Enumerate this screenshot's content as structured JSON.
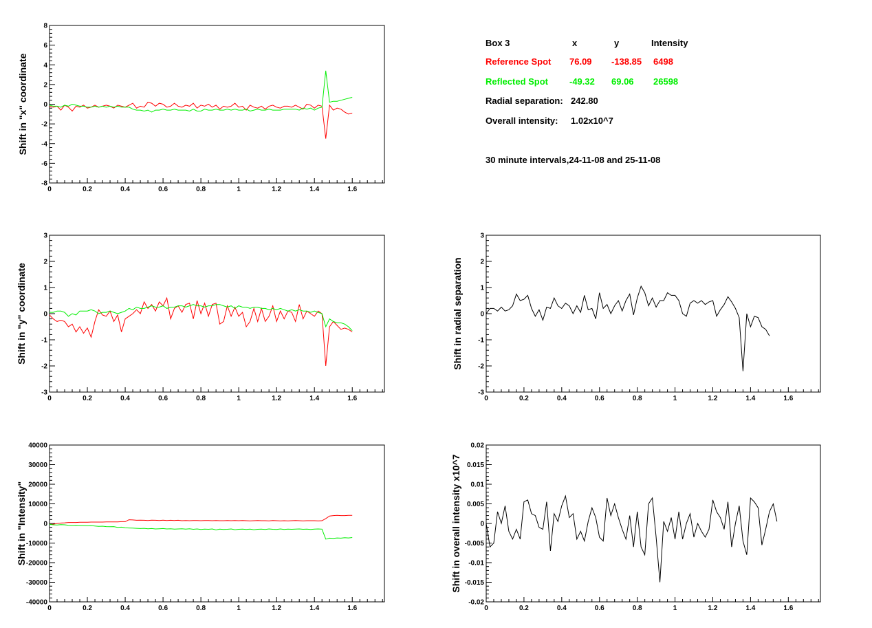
{
  "info": {
    "box_label": "Box 3",
    "col_x": "x",
    "col_y": "y",
    "col_intensity": "Intensity",
    "reference": {
      "label": "Reference Spot",
      "x": "76.09",
      "y": "-138.85",
      "intensity": "6498"
    },
    "reflected": {
      "label": "Reflected Spot",
      "x": "-49.32",
      "y": "69.06",
      "intensity": "26598"
    },
    "radial_label": "Radial separation:",
    "radial_value": "242.80",
    "overall_label": "Overall intensity:",
    "overall_value": "1.02x10^7",
    "note": "30 minute intervals,24-11-08 and 25-11-08"
  },
  "colors": {
    "reference": "#ff0000",
    "reflected": "#00ee00",
    "single": "#000000",
    "axis": "#000000"
  },
  "chart_data": [
    {
      "id": "x-shift",
      "type": "line",
      "ylabel": "Shift in \"x\" coordinate",
      "xlabel": "",
      "xlim": [
        0,
        1.77
      ],
      "ylim": [
        -8,
        8
      ],
      "xticks": [
        0,
        0.2,
        0.4,
        0.6,
        0.8,
        1,
        1.2,
        1.4,
        1.6
      ],
      "yticks": [
        -8,
        -6,
        -4,
        -2,
        0,
        2,
        4,
        6,
        8
      ],
      "grid": false,
      "series": [
        {
          "color": "reference",
          "x0": 0,
          "dx": 0.02,
          "values": [
            -0.2,
            -0.3,
            -0.2,
            -0.6,
            -0.1,
            -0.3,
            -0.7,
            -0.2,
            -0.3,
            -0.1,
            -0.4,
            -0.3,
            -0.1,
            -0.3,
            -0.2,
            -0.1,
            -0.2,
            -0.4,
            -0.1,
            -0.2,
            -0.3,
            -0.1,
            0.1,
            -0.4,
            -0.2,
            -0.3,
            0.2,
            0.1,
            -0.2,
            0.1,
            0.0,
            -0.3,
            -0.2,
            0.1,
            -0.2,
            -0.3,
            -0.1,
            -0.2,
            0.1,
            -0.4,
            -0.1,
            -0.2,
            0.0,
            -0.3,
            -0.1,
            -0.5,
            -0.2,
            -0.3,
            -0.2,
            0.1,
            -0.3,
            -0.2,
            -0.6,
            -0.1,
            -0.3,
            -0.4,
            -0.2,
            -0.5,
            -0.2,
            -0.1,
            -0.3,
            -0.4,
            -0.2,
            -0.2,
            -0.3,
            -0.1,
            -0.3,
            -0.5,
            0.0,
            -0.1,
            -0.4,
            -0.1,
            -0.2,
            -3.5,
            -0.1,
            -0.6,
            -0.4,
            -0.5,
            -0.8,
            -1.0,
            -0.9
          ]
        },
        {
          "color": "reflected",
          "x0": 0,
          "dx": 0.02,
          "values": [
            -0.1,
            -0.2,
            -0.2,
            -0.3,
            -0.1,
            -0.2,
            0.0,
            -0.1,
            -0.2,
            -0.2,
            -0.3,
            -0.3,
            -0.2,
            -0.3,
            -0.2,
            -0.3,
            -0.2,
            -0.3,
            -0.2,
            -0.3,
            -0.3,
            -0.3,
            -0.5,
            -0.6,
            -0.6,
            -0.7,
            -0.6,
            -0.8,
            -0.6,
            -0.6,
            -0.5,
            -0.6,
            -0.6,
            -0.5,
            -0.6,
            -0.6,
            -0.6,
            -0.7,
            -0.5,
            -0.7,
            -0.7,
            -0.5,
            -0.6,
            -0.6,
            -0.5,
            -0.6,
            -0.6,
            -0.5,
            -0.6,
            -0.5,
            -0.6,
            -0.6,
            -0.5,
            -0.7,
            -0.6,
            -0.5,
            -0.6,
            -0.6,
            -0.5,
            -0.6,
            -0.6,
            -0.6,
            -0.5,
            -0.5,
            -0.5,
            -0.5,
            -0.6,
            -0.4,
            -0.5,
            -0.4,
            -0.6,
            -0.4,
            -0.3,
            3.4,
            0.2,
            0.3,
            0.3,
            0.4,
            0.5,
            0.6,
            0.7
          ]
        }
      ]
    },
    {
      "id": "y-shift",
      "type": "line",
      "ylabel": "Shift in \"y\" coordinate",
      "xlabel": "",
      "xlim": [
        0,
        1.77
      ],
      "ylim": [
        -3,
        3
      ],
      "xticks": [
        0,
        0.2,
        0.4,
        0.6,
        0.8,
        1,
        1.2,
        1.4,
        1.6
      ],
      "yticks": [
        -3,
        -2,
        -1,
        0,
        1,
        2,
        3
      ],
      "grid": false,
      "series": [
        {
          "color": "reference",
          "x0": 0,
          "dx": 0.02,
          "values": [
            -0.05,
            -0.2,
            -0.3,
            -0.25,
            -0.3,
            -0.5,
            -0.4,
            -0.7,
            -0.5,
            -0.75,
            -0.55,
            -0.9,
            -0.3,
            0.15,
            -0.05,
            -0.1,
            0.1,
            -0.3,
            -0.05,
            -0.7,
            -0.2,
            -0.1,
            0.0,
            0.15,
            0.0,
            0.45,
            0.2,
            0.35,
            0.1,
            0.45,
            0.3,
            0.6,
            -0.2,
            0.2,
            0.3,
            0.05,
            0.35,
            0.4,
            -0.2,
            0.5,
            0.0,
            0.4,
            -0.1,
            0.35,
            0.4,
            -0.4,
            -0.3,
            0.3,
            -0.1,
            0.25,
            -0.1,
            0.05,
            -0.5,
            -0.3,
            0.2,
            -0.3,
            0.2,
            -0.3,
            -0.1,
            0.3,
            -0.3,
            0.1,
            -0.2,
            0.1,
            0.05,
            -0.3,
            0.35,
            -0.2,
            0.1,
            0.0,
            -0.1,
            0.1,
            0.0,
            -2.0,
            -0.5,
            -0.3,
            -0.45,
            -0.6,
            -0.55,
            -0.6,
            -0.7
          ]
        },
        {
          "color": "reflected",
          "x0": 0,
          "dx": 0.02,
          "values": [
            0.05,
            0.05,
            0.1,
            0.1,
            0.05,
            -0.1,
            0.0,
            -0.05,
            0.1,
            0.1,
            0.1,
            0.15,
            0.1,
            0.0,
            0.05,
            0.05,
            0.1,
            0.05,
            0.0,
            0.05,
            0.1,
            0.2,
            0.15,
            0.25,
            0.2,
            0.2,
            0.25,
            0.3,
            0.25,
            0.25,
            0.3,
            0.2,
            0.25,
            0.25,
            0.3,
            0.3,
            0.25,
            0.3,
            0.35,
            0.3,
            0.3,
            0.25,
            0.3,
            0.3,
            0.35,
            0.35,
            0.3,
            0.25,
            0.3,
            0.2,
            0.3,
            0.25,
            0.25,
            0.2,
            0.25,
            0.25,
            0.2,
            0.2,
            0.15,
            0.2,
            0.15,
            0.2,
            0.15,
            0.1,
            0.15,
            0.1,
            0.15,
            0.1,
            0.1,
            0.05,
            0.1,
            0.05,
            0.0,
            -0.5,
            -0.2,
            -0.3,
            -0.35,
            -0.35,
            -0.4,
            -0.5,
            -0.65
          ]
        }
      ]
    },
    {
      "id": "intensity-shift",
      "type": "line",
      "ylabel": "Shift in \"Intensity\"",
      "xlabel": "",
      "xlim": [
        0,
        1.77
      ],
      "ylim": [
        -40000,
        40000
      ],
      "xticks": [
        0,
        0.2,
        0.4,
        0.6,
        0.8,
        1,
        1.2,
        1.4,
        1.6
      ],
      "yticks": [
        -40000,
        -30000,
        -20000,
        -10000,
        0,
        10000,
        20000,
        30000,
        40000
      ],
      "grid": false,
      "series": [
        {
          "color": "reference",
          "x0": 0,
          "dx": 0.02,
          "values": [
            -500,
            -400,
            0,
            200,
            300,
            500,
            500,
            500,
            600,
            600,
            600,
            700,
            700,
            700,
            700,
            800,
            800,
            800,
            800,
            900,
            900,
            1900,
            1800,
            1600,
            1700,
            1600,
            1500,
            1700,
            1600,
            1500,
            1700,
            1500,
            1600,
            1500,
            1600,
            1400,
            1500,
            1400,
            1500,
            1500,
            1400,
            1500,
            1500,
            1400,
            1500,
            1400,
            1400,
            1500,
            1400,
            1500,
            1400,
            1500,
            1400,
            1300,
            1400,
            1500,
            1400,
            1400,
            1300,
            1500,
            1400,
            1300,
            1400,
            1300,
            1400,
            1500,
            1400,
            1300,
            1400,
            1400,
            1400,
            1300,
            1400,
            2500,
            3800,
            4000,
            4100,
            4000,
            4000,
            4100,
            4100
          ]
        },
        {
          "color": "reflected",
          "x0": 0,
          "dx": 0.02,
          "values": [
            -500,
            -700,
            -800,
            -600,
            -700,
            -900,
            -1000,
            -900,
            -1000,
            -1100,
            -1200,
            -1100,
            -1300,
            -1500,
            -1400,
            -1600,
            -1700,
            -1600,
            -2000,
            -1900,
            -2200,
            -2300,
            -2400,
            -2500,
            -2600,
            -2500,
            -2700,
            -2600,
            -2800,
            -2700,
            -2600,
            -2800,
            -2700,
            -2900,
            -2800,
            -2700,
            -2900,
            -2700,
            -3000,
            -2800,
            -3100,
            -2900,
            -3000,
            -2800,
            -3300,
            -2900,
            -3100,
            -3000,
            -2800,
            -3200,
            -3000,
            -2900,
            -3100,
            -2900,
            -3200,
            -3000,
            -2900,
            -3100,
            -2800,
            -3000,
            -3100,
            -2800,
            -3100,
            -2900,
            -3000,
            -2900,
            -2800,
            -3000,
            -2900,
            -3100,
            -2900,
            -2800,
            -2900,
            -8000,
            -7500,
            -7600,
            -7400,
            -7500,
            -7300,
            -7400,
            -7200
          ]
        }
      ]
    },
    {
      "id": "radial-shift",
      "type": "line",
      "ylabel": "Shift in radial separation",
      "xlabel": "",
      "xlim": [
        0,
        1.77
      ],
      "ylim": [
        -3,
        3
      ],
      "xticks": [
        0,
        0.2,
        0.4,
        0.6,
        0.8,
        1,
        1.2,
        1.4,
        1.6
      ],
      "yticks": [
        -3,
        -2,
        -1,
        0,
        1,
        2,
        3
      ],
      "grid": false,
      "series": [
        {
          "color": "single",
          "x0": 0,
          "dx": 0.02,
          "values": [
            0.0,
            0.2,
            0.2,
            0.1,
            0.25,
            0.1,
            0.15,
            0.3,
            0.75,
            0.5,
            0.55,
            0.7,
            0.2,
            -0.1,
            0.15,
            -0.25,
            0.25,
            0.2,
            0.6,
            0.3,
            0.2,
            0.4,
            0.3,
            0.0,
            0.3,
            0.05,
            0.7,
            0.15,
            0.2,
            -0.2,
            0.8,
            0.2,
            0.35,
            0.0,
            0.3,
            0.5,
            0.1,
            0.5,
            0.75,
            -0.05,
            0.6,
            1.05,
            0.8,
            0.3,
            0.6,
            0.25,
            0.5,
            0.5,
            0.8,
            0.7,
            0.7,
            0.5,
            0.0,
            -0.1,
            0.4,
            0.5,
            0.4,
            0.5,
            0.35,
            0.45,
            0.5,
            -0.1,
            0.15,
            0.35,
            0.65,
            0.45,
            0.2,
            -0.15,
            -2.2,
            0.0,
            -0.5,
            -0.1,
            -0.15,
            -0.5,
            -0.6,
            -0.85
          ]
        }
      ]
    },
    {
      "id": "overall-shift",
      "type": "line",
      "ylabel": "Shift in overall intensity x10^7",
      "xlabel": "",
      "xlim": [
        0,
        1.77
      ],
      "ylim": [
        -0.02,
        0.02
      ],
      "xticks": [
        0,
        0.2,
        0.4,
        0.6,
        0.8,
        1,
        1.2,
        1.4,
        1.6
      ],
      "yticks": [
        -0.02,
        -0.015,
        -0.01,
        -0.005,
        0,
        0.005,
        0.01,
        0.015,
        0.02
      ],
      "grid": false,
      "series": [
        {
          "color": "single",
          "x0": 0,
          "dx": 0.02,
          "values": [
            0.0,
            -0.006,
            -0.005,
            0.003,
            0.0,
            0.0045,
            -0.002,
            -0.004,
            -0.0015,
            -0.004,
            0.0055,
            0.006,
            0.0025,
            0.002,
            -0.001,
            -0.0015,
            0.0055,
            -0.007,
            0.0025,
            0.0005,
            0.0045,
            0.007,
            0.0015,
            0.0025,
            -0.004,
            -0.002,
            -0.0045,
            0.0005,
            0.004,
            0.0015,
            -0.0035,
            -0.0045,
            0.0065,
            0.002,
            0.005,
            0.0015,
            -0.0015,
            -0.004,
            0.002,
            -0.006,
            0.003,
            -0.006,
            -0.008,
            0.005,
            0.0065,
            -0.0035,
            -0.015,
            0.0005,
            -0.002,
            0.0015,
            -0.004,
            0.003,
            -0.004,
            0.0,
            0.0025,
            -0.0035,
            0.0,
            -0.002,
            -0.0035,
            -0.0015,
            0.006,
            0.003,
            0.0015,
            -0.0015,
            0.0055,
            -0.006,
            0.0,
            0.0045,
            -0.0045,
            -0.008,
            0.0065,
            0.0055,
            0.004,
            -0.0055,
            -0.0015,
            0.003,
            0.005,
            0.0005
          ]
        }
      ]
    }
  ]
}
